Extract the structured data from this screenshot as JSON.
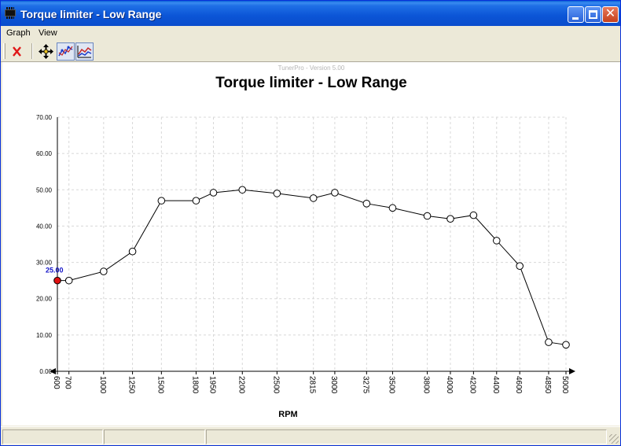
{
  "window": {
    "title": "Torque limiter - Low Range"
  },
  "menu": {
    "items": [
      "Graph",
      "View"
    ]
  },
  "toolbar": {
    "buttons": [
      {
        "icon": "close-x-icon"
      },
      {
        "icon": "move-cross-icon"
      },
      {
        "icon": "line-graph-icon"
      },
      {
        "icon": "area-graph-icon"
      }
    ]
  },
  "graph": {
    "version": "TunerPro - Version 5.00",
    "selected_value": "25.00"
  },
  "colors": {
    "title_blue": "#0a4ccc",
    "selected_point": "#e01010",
    "selected_label": "#1414c8"
  },
  "chart_data": {
    "type": "line",
    "title": "Torque limiter - Low Range",
    "xlabel": "RPM",
    "ylabel": "",
    "x_tick_labels": [
      "600",
      "700",
      "1000",
      "1250",
      "1500",
      "1800",
      "1950",
      "2200",
      "2500",
      "2815",
      "3000",
      "3275",
      "3500",
      "3800",
      "4000",
      "4200",
      "4400",
      "4600",
      "4850",
      "5000"
    ],
    "values": [
      25,
      25,
      27.5,
      33,
      47,
      47,
      49.2,
      50,
      49,
      47.7,
      49.2,
      46.2,
      45,
      42.8,
      42,
      43,
      36,
      29,
      8,
      7.3
    ],
    "ylim": [
      0,
      70
    ],
    "y_tick_labels": [
      "0.00",
      "10.00",
      "20.00",
      "30.00",
      "40.00",
      "50.00",
      "60.00",
      "70.00"
    ],
    "grid": true,
    "selected_index": 0
  }
}
